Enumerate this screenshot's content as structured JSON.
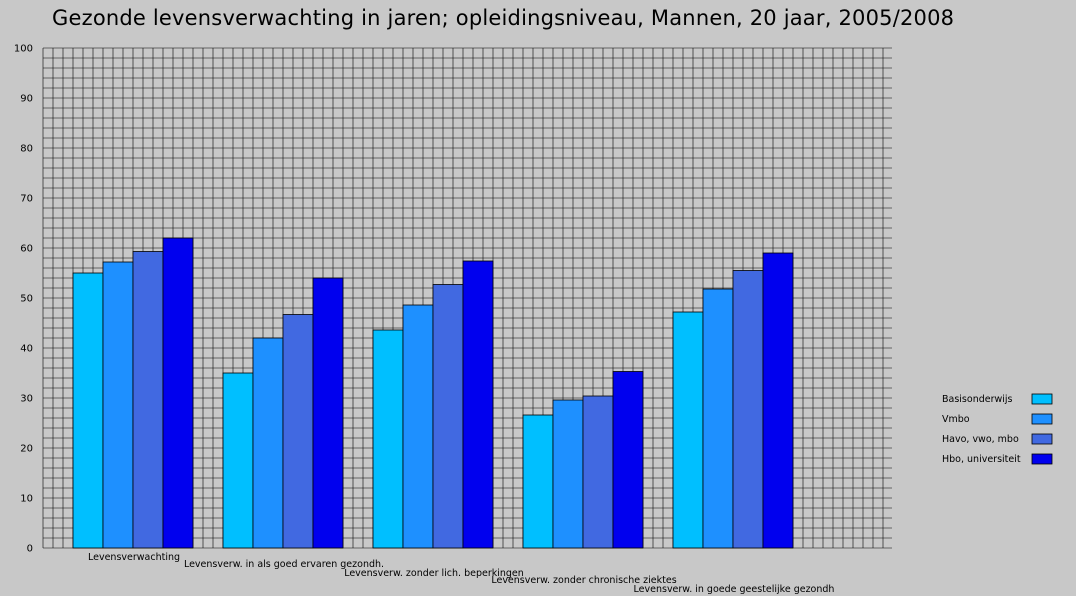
{
  "chart_data": {
    "type": "bar",
    "title": "Gezonde levensverwachting in jaren; opleidingsniveau, Mannen, 20 jaar, 2005/2008",
    "xlabel": "",
    "ylabel": "",
    "ylim": [
      0,
      100
    ],
    "yticks": [
      0,
      10,
      20,
      30,
      40,
      50,
      60,
      70,
      80,
      90,
      100
    ],
    "grid": true,
    "legend_position": "right",
    "categories": [
      "Levensverwachting",
      "Levensverw. in als goed ervaren gezondh.",
      "Levensverw. zonder lich. beperkingen",
      "Levensverw. zonder chronische ziektes",
      "Levensverw. in goede geestelijke gezondh"
    ],
    "series": [
      {
        "name": "Basisonderwijs",
        "color": "#00bfff",
        "values": [
          55.0,
          35.0,
          43.6,
          26.6,
          47.2
        ]
      },
      {
        "name": "Vmbo",
        "color": "#1e90ff",
        "values": [
          57.2,
          42.0,
          48.6,
          29.6,
          51.8
        ]
      },
      {
        "name": "Havo, vwo, mbo",
        "color": "#4169e1",
        "values": [
          59.3,
          46.7,
          52.7,
          30.4,
          55.5
        ]
      },
      {
        "name": "Hbo, universiteit",
        "color": "#0000ee",
        "values": [
          62.0,
          54.0,
          57.4,
          35.3,
          59.0
        ]
      }
    ]
  }
}
